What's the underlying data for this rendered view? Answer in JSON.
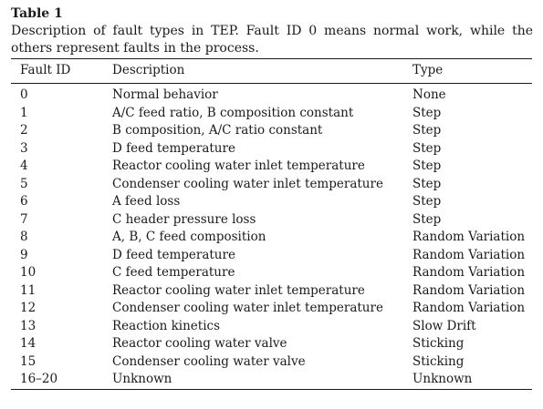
{
  "table": {
    "label": "Table 1",
    "caption": "Description of fault types in TEP. Fault ID 0 means normal work, while the others represent faults in the process.",
    "headers": [
      "Fault ID",
      "Description",
      "Type"
    ],
    "rows": [
      [
        "0",
        "Normal behavior",
        "None"
      ],
      [
        "1",
        "A/C feed ratio, B composition constant",
        "Step"
      ],
      [
        "2",
        "B composition, A/C ratio constant",
        "Step"
      ],
      [
        "3",
        "D feed temperature",
        "Step"
      ],
      [
        "4",
        "Reactor cooling water inlet temperature",
        "Step"
      ],
      [
        "5",
        "Condenser cooling water inlet temperature",
        "Step"
      ],
      [
        "6",
        "A feed loss",
        "Step"
      ],
      [
        "7",
        "C header pressure loss",
        "Step"
      ],
      [
        "8",
        "A, B, C feed composition",
        "Random Variation"
      ],
      [
        "9",
        "D feed temperature",
        "Random Variation"
      ],
      [
        "10",
        "C feed temperature",
        "Random Variation"
      ],
      [
        "11",
        "Reactor cooling water inlet temperature",
        "Random Variation"
      ],
      [
        "12",
        "Condenser cooling water inlet temperature",
        "Random Variation"
      ],
      [
        "13",
        "Reaction kinetics",
        "Slow Drift"
      ],
      [
        "14",
        "Reactor cooling water valve",
        "Sticking"
      ],
      [
        "15",
        "Condenser cooling water valve",
        "Sticking"
      ],
      [
        "16–20",
        "Unknown",
        "Unknown"
      ]
    ]
  }
}
